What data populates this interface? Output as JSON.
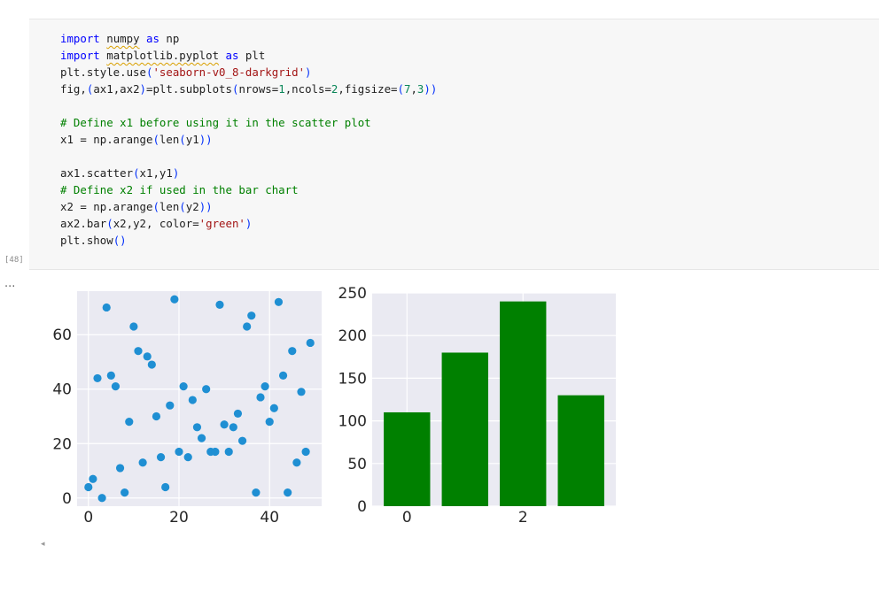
{
  "cell": {
    "execution_count": "[48]",
    "lines": [
      [
        {
          "t": "import",
          "c": "kw"
        },
        {
          "t": " "
        },
        {
          "t": "numpy",
          "c": "sq"
        },
        {
          "t": " "
        },
        {
          "t": "as",
          "c": "kw"
        },
        {
          "t": " np"
        }
      ],
      [
        {
          "t": "import",
          "c": "kw"
        },
        {
          "t": " "
        },
        {
          "t": "matplotlib.pyplot",
          "c": "sq"
        },
        {
          "t": " "
        },
        {
          "t": "as",
          "c": "kw"
        },
        {
          "t": " plt"
        }
      ],
      [
        {
          "t": "plt.style.use"
        },
        {
          "t": "(",
          "c": "pa"
        },
        {
          "t": "'seaborn-v0_8-darkgrid'",
          "c": "str"
        },
        {
          "t": ")",
          "c": "pa"
        }
      ],
      [
        {
          "t": "fig,"
        },
        {
          "t": "(",
          "c": "pa"
        },
        {
          "t": "ax1,ax2"
        },
        {
          "t": ")",
          "c": "pa"
        },
        {
          "t": "=plt.subplots"
        },
        {
          "t": "(",
          "c": "pa"
        },
        {
          "t": "nrows="
        },
        {
          "t": "1",
          "c": "num"
        },
        {
          "t": ",ncols="
        },
        {
          "t": "2",
          "c": "num"
        },
        {
          "t": ",figsize="
        },
        {
          "t": "(",
          "c": "pa"
        },
        {
          "t": "7",
          "c": "num"
        },
        {
          "t": ","
        },
        {
          "t": "3",
          "c": "num"
        },
        {
          "t": "))",
          "c": "pa"
        }
      ],
      [],
      [
        {
          "t": "# Define x1 before using it in the scatter plot",
          "c": "cm"
        }
      ],
      [
        {
          "t": "x1 = np.arange"
        },
        {
          "t": "(",
          "c": "pa"
        },
        {
          "t": "len"
        },
        {
          "t": "(",
          "c": "pa"
        },
        {
          "t": "y1"
        },
        {
          "t": "))",
          "c": "pa"
        }
      ],
      [],
      [
        {
          "t": "ax1.scatter"
        },
        {
          "t": "(",
          "c": "pa"
        },
        {
          "t": "x1,y1"
        },
        {
          "t": ")",
          "c": "pa"
        }
      ],
      [
        {
          "t": "# Define x2 if used in the bar chart",
          "c": "cm"
        }
      ],
      [
        {
          "t": "x2 = np.arange"
        },
        {
          "t": "(",
          "c": "pa"
        },
        {
          "t": "len"
        },
        {
          "t": "(",
          "c": "pa"
        },
        {
          "t": "y2"
        },
        {
          "t": "))",
          "c": "pa"
        }
      ],
      [
        {
          "t": "ax2.bar"
        },
        {
          "t": "(",
          "c": "pa"
        },
        {
          "t": "x2,y2, color="
        },
        {
          "t": "'green'",
          "c": "str"
        },
        {
          "t": ")",
          "c": "pa"
        }
      ],
      [
        {
          "t": "plt.show"
        },
        {
          "t": "()",
          "c": "pa"
        }
      ]
    ]
  },
  "output": {
    "marker": "...",
    "scroll_arrow": "◂"
  },
  "chart_data": [
    {
      "type": "scatter",
      "title": "",
      "xlabel": "",
      "ylabel": "",
      "xlim": [
        -2.5,
        51.5
      ],
      "ylim": [
        -3,
        76
      ],
      "xticks": [
        0,
        20,
        40
      ],
      "yticks": [
        0,
        20,
        40,
        60
      ],
      "grid": true,
      "color": "#1f8fd3",
      "points": [
        [
          0,
          4
        ],
        [
          1,
          7
        ],
        [
          2,
          44
        ],
        [
          3,
          0
        ],
        [
          4,
          70
        ],
        [
          5,
          45
        ],
        [
          6,
          41
        ],
        [
          7,
          11
        ],
        [
          8,
          2
        ],
        [
          9,
          28
        ],
        [
          10,
          63
        ],
        [
          11,
          54
        ],
        [
          12,
          13
        ],
        [
          13,
          52
        ],
        [
          14,
          49
        ],
        [
          15,
          30
        ],
        [
          16,
          15
        ],
        [
          17,
          4
        ],
        [
          18,
          34
        ],
        [
          19,
          73
        ],
        [
          20,
          17
        ],
        [
          21,
          41
        ],
        [
          22,
          15
        ],
        [
          23,
          36
        ],
        [
          24,
          26
        ],
        [
          25,
          22
        ],
        [
          26,
          40
        ],
        [
          27,
          17
        ],
        [
          28,
          17
        ],
        [
          29,
          71
        ],
        [
          30,
          27
        ],
        [
          31,
          17
        ],
        [
          32,
          26
        ],
        [
          33,
          31
        ],
        [
          34,
          21
        ],
        [
          35,
          63
        ],
        [
          36,
          67
        ],
        [
          37,
          2
        ],
        [
          38,
          37
        ],
        [
          39,
          41
        ],
        [
          40,
          28
        ],
        [
          41,
          33
        ],
        [
          42,
          72
        ],
        [
          43,
          45
        ],
        [
          44,
          2
        ],
        [
          45,
          54
        ],
        [
          46,
          13
        ],
        [
          47,
          39
        ],
        [
          48,
          17
        ],
        [
          49,
          57
        ]
      ]
    },
    {
      "type": "bar",
      "title": "",
      "xlabel": "",
      "ylabel": "",
      "x": [
        0,
        1,
        2,
        3
      ],
      "values": [
        110,
        180,
        240,
        130
      ],
      "xlim": [
        -0.6,
        3.6
      ],
      "ylim": [
        0,
        250
      ],
      "xticks": [
        0,
        2
      ],
      "yticks": [
        0,
        50,
        100,
        150,
        200,
        250
      ],
      "grid": true,
      "color": "#008000"
    }
  ]
}
